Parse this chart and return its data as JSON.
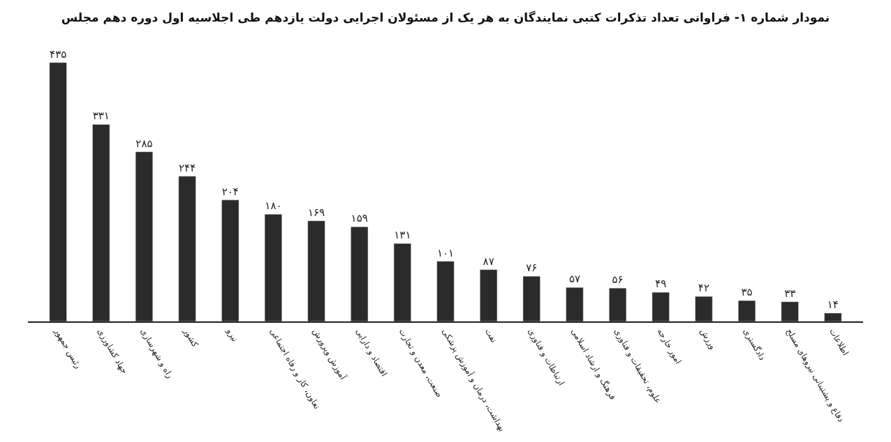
{
  "chart_data": {
    "type": "bar",
    "title": "نمودار شماره ۱- فراوانی تعداد تذکرات کتبی نمایندگان به هر یک از مسئولان اجرایی دولت یازدهم طی اجلاسیه اول دوره دهم مجلس",
    "categories": [
      "رئیس جمهور",
      "جهاد کشاورزی",
      "راه و شهرسازی",
      "کشور",
      "نیرو",
      "تعاون، کار و رفاه اجتماعی",
      "آموزش وپرورش",
      "اقتصاد و دارایی",
      "صنعت، معدن و تجارت",
      "بهداشت، درمان و آموزش پزشکی",
      "نفت",
      "ارتباطات و فناوری",
      "فرهنگ و ارشاد اسلامی",
      "علوم، تحقیقات و فناوری",
      "امور خارجه",
      "ورزش",
      "دادگستری",
      "دفاع و پشتیبانی نیروهای مسلح",
      "اطلاعات"
    ],
    "values": [
      435,
      331,
      285,
      244,
      204,
      180,
      169,
      159,
      131,
      101,
      87,
      76,
      57,
      56,
      49,
      42,
      35,
      33,
      14
    ],
    "value_labels": [
      "۴۳۵",
      "۳۳۱",
      "۲۸۵",
      "۲۴۴",
      "۲۰۴",
      "۱۸۰",
      "۱۶۹",
      "۱۵۹",
      "۱۳۱",
      "۱۰۱",
      "۸۷",
      "۷۶",
      "۵۷",
      "۵۶",
      "۴۹",
      "۴۲",
      "۳۵",
      "۳۳",
      "۱۴"
    ],
    "color": "#2b2b2b"
  }
}
